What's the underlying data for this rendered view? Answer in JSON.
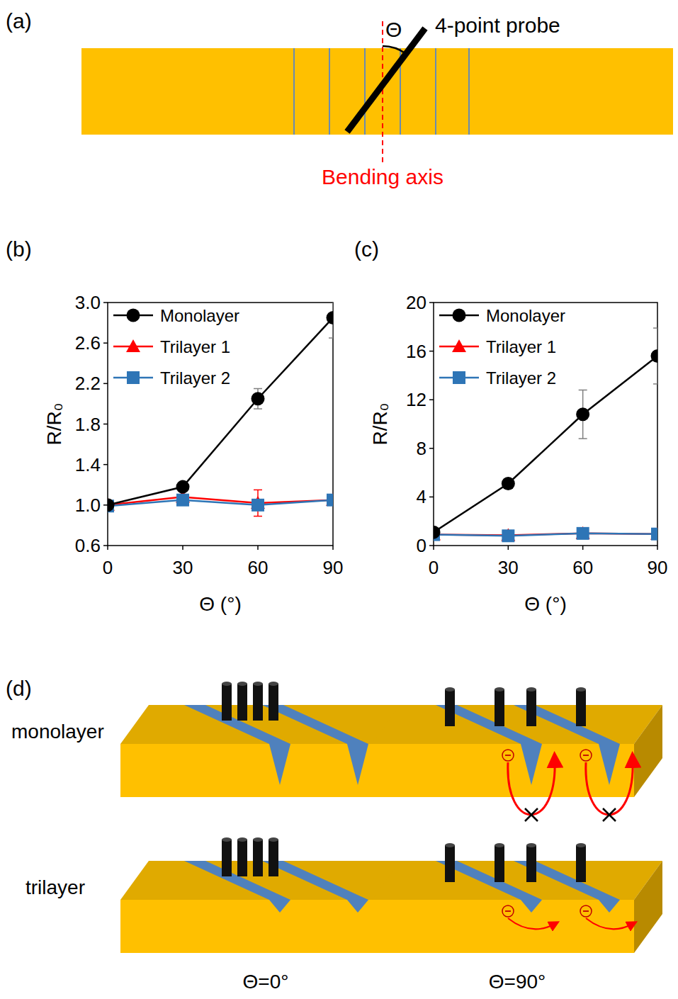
{
  "panels": {
    "a": "(a)",
    "b": "(b)",
    "c": "(c)",
    "d": "(d)"
  },
  "diagram_a": {
    "probe_label": "4-point probe",
    "angle_label": "Θ",
    "axis_label": "Bending axis"
  },
  "chart_data": [
    {
      "type": "line",
      "x_label": "Θ (°)",
      "y_label": "R/R₀",
      "x": [
        0,
        30,
        60,
        90
      ],
      "xlim": [
        0,
        90
      ],
      "xticks": [
        0,
        30,
        60,
        90
      ],
      "ylim": [
        0.6,
        3.0
      ],
      "yticks": [
        0.6,
        {
          "value": 1,
          "label": "1.0"
        },
        1.4,
        1.8,
        2.2,
        2.6,
        {
          "value": 3,
          "label": "3.0"
        }
      ],
      "legend": "upper left",
      "series": [
        {
          "name": "Monolayer",
          "color": "#000000",
          "marker": "circle",
          "values": [
            1.0,
            1.18,
            2.05,
            2.85
          ],
          "errors": [
            null,
            null,
            0.1,
            0.2
          ]
        },
        {
          "name": "Trilayer 1",
          "color": "#ff0000",
          "marker": "triangle",
          "values": [
            1.0,
            1.08,
            1.02,
            1.05
          ],
          "errors": [
            null,
            null,
            0.13,
            null
          ]
        },
        {
          "name": "Trilayer 2",
          "color": "#2e75b6",
          "marker": "square",
          "values": [
            0.99,
            1.05,
            1.0,
            1.05
          ],
          "errors": [
            null,
            null,
            null,
            null
          ]
        }
      ]
    },
    {
      "type": "line",
      "x_label": "Θ (°)",
      "y_label": "R/R₀",
      "x": [
        0,
        30,
        60,
        90
      ],
      "xlim": [
        0,
        90
      ],
      "xticks": [
        0,
        30,
        60,
        90
      ],
      "ylim": [
        0,
        20
      ],
      "yticks": [
        0,
        4,
        8,
        12,
        16,
        20
      ],
      "legend": "upper left",
      "series": [
        {
          "name": "Monolayer",
          "color": "#000000",
          "marker": "circle",
          "values": [
            1.1,
            5.1,
            10.8,
            15.6
          ],
          "errors": [
            null,
            0.4,
            2.0,
            2.3
          ]
        },
        {
          "name": "Trilayer 1",
          "color": "#ff0000",
          "marker": "triangle",
          "values": [
            0.9,
            0.85,
            1.0,
            0.95
          ],
          "errors": [
            null,
            null,
            null,
            null
          ]
        },
        {
          "name": "Trilayer 2",
          "color": "#2e75b6",
          "marker": "square",
          "values": [
            0.9,
            0.8,
            1.0,
            0.95
          ],
          "errors": [
            null,
            null,
            null,
            null
          ]
        }
      ]
    }
  ],
  "diagram_d": {
    "rows": [
      "monolayer",
      "trilayer"
    ],
    "columns": [
      "Θ=0°",
      "Θ=90°"
    ]
  }
}
